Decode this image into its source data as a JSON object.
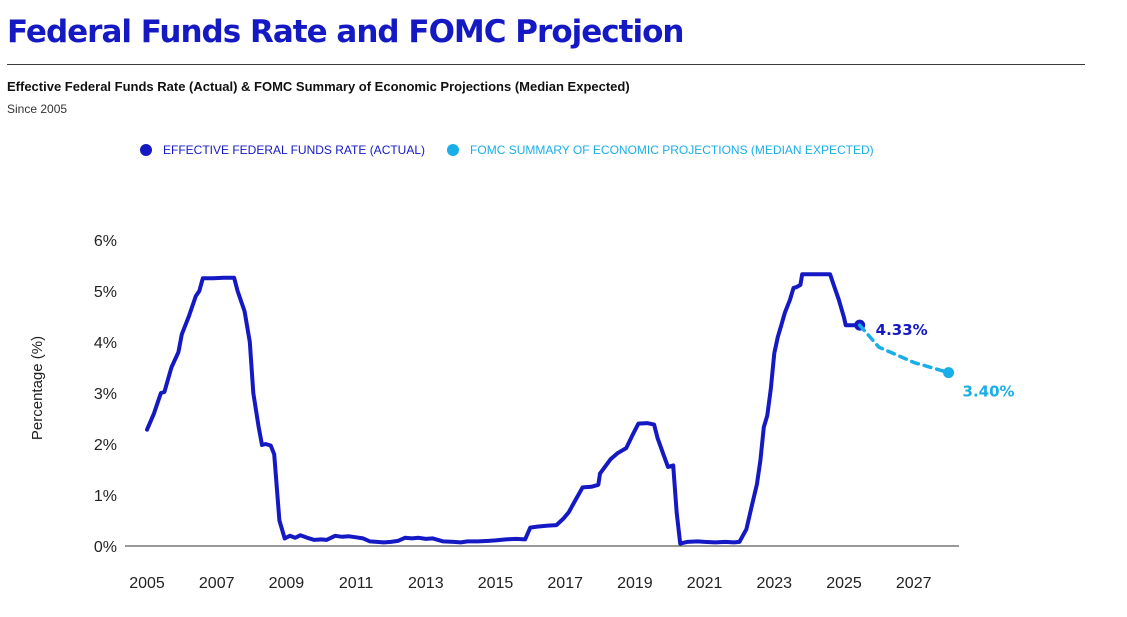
{
  "header": {
    "title": "Federal Funds Rate and FOMC Projection",
    "subtitle": "Effective Federal Funds Rate (Actual) & FOMC Summary of Economic Projections (Median Expected)",
    "since": "Since 2005"
  },
  "legend": {
    "actual": "EFFECTIVE FEDERAL FUNDS RATE (ACTUAL)",
    "projection": "FOMC SUMMARY OF ECONOMIC PROJECTIONS (MEDIAN EXPECTED)"
  },
  "colors": {
    "title": "#1419c4",
    "actual": "#1419c4",
    "projection": "#1aaee8",
    "axis": "#333333"
  },
  "chart_data": {
    "type": "line",
    "title": "Federal Funds Rate and FOMC Projection",
    "xlabel": "",
    "ylabel": "Percentage (%)",
    "xlim": [
      2005,
      2028.3
    ],
    "ylim": [
      0,
      6
    ],
    "xticks": [
      2005,
      2007,
      2009,
      2011,
      2013,
      2015,
      2017,
      2019,
      2021,
      2023,
      2025,
      2027
    ],
    "xtick_labels": [
      "2005",
      "2007",
      "2009",
      "2011",
      "2013",
      "2015",
      "2017",
      "2019",
      "2021",
      "2023",
      "2025",
      "2027"
    ],
    "yticks": [
      0,
      1,
      2,
      3,
      4,
      5,
      6
    ],
    "ytick_labels": [
      "0%",
      "1%",
      "2%",
      "3%",
      "4%",
      "5%",
      "6%"
    ],
    "grid": false,
    "legend_position": "top-center",
    "series": [
      {
        "name": "EFFECTIVE FEDERAL FUNDS RATE (ACTUAL)",
        "style": "solid",
        "color": "#1419c4",
        "end_label": "4.33%",
        "points": [
          [
            2005.0,
            2.28
          ],
          [
            2005.2,
            2.6
          ],
          [
            2005.4,
            3.0
          ],
          [
            2005.5,
            3.02
          ],
          [
            2005.7,
            3.5
          ],
          [
            2005.9,
            3.8
          ],
          [
            2006.0,
            4.15
          ],
          [
            2006.2,
            4.5
          ],
          [
            2006.4,
            4.9
          ],
          [
            2006.5,
            5.0
          ],
          [
            2006.6,
            5.25
          ],
          [
            2006.9,
            5.25
          ],
          [
            2007.2,
            5.26
          ],
          [
            2007.5,
            5.26
          ],
          [
            2007.6,
            5.0
          ],
          [
            2007.8,
            4.6
          ],
          [
            2007.95,
            4.0
          ],
          [
            2008.05,
            3.0
          ],
          [
            2008.2,
            2.35
          ],
          [
            2008.3,
            1.98
          ],
          [
            2008.4,
            2.0
          ],
          [
            2008.55,
            1.97
          ],
          [
            2008.65,
            1.8
          ],
          [
            2008.8,
            0.5
          ],
          [
            2008.95,
            0.15
          ],
          [
            2009.1,
            0.2
          ],
          [
            2009.25,
            0.16
          ],
          [
            2009.4,
            0.21
          ],
          [
            2009.6,
            0.16
          ],
          [
            2009.8,
            0.12
          ],
          [
            2010.0,
            0.13
          ],
          [
            2010.15,
            0.12
          ],
          [
            2010.4,
            0.2
          ],
          [
            2010.6,
            0.18
          ],
          [
            2010.8,
            0.19
          ],
          [
            2011.0,
            0.17
          ],
          [
            2011.2,
            0.15
          ],
          [
            2011.4,
            0.09
          ],
          [
            2011.6,
            0.08
          ],
          [
            2011.8,
            0.07
          ],
          [
            2012.0,
            0.08
          ],
          [
            2012.2,
            0.1
          ],
          [
            2012.4,
            0.16
          ],
          [
            2012.6,
            0.15
          ],
          [
            2012.8,
            0.16
          ],
          [
            2013.0,
            0.14
          ],
          [
            2013.2,
            0.15
          ],
          [
            2013.5,
            0.09
          ],
          [
            2013.8,
            0.08
          ],
          [
            2014.0,
            0.07
          ],
          [
            2014.2,
            0.09
          ],
          [
            2014.5,
            0.09
          ],
          [
            2014.8,
            0.1
          ],
          [
            2015.0,
            0.11
          ],
          [
            2015.3,
            0.13
          ],
          [
            2015.6,
            0.14
          ],
          [
            2015.85,
            0.13
          ],
          [
            2016.0,
            0.36
          ],
          [
            2016.2,
            0.38
          ],
          [
            2016.5,
            0.4
          ],
          [
            2016.75,
            0.41
          ],
          [
            2016.95,
            0.54
          ],
          [
            2017.1,
            0.66
          ],
          [
            2017.3,
            0.91
          ],
          [
            2017.5,
            1.15
          ],
          [
            2017.75,
            1.16
          ],
          [
            2017.95,
            1.2
          ],
          [
            2018.0,
            1.42
          ],
          [
            2018.3,
            1.7
          ],
          [
            2018.5,
            1.82
          ],
          [
            2018.75,
            1.92
          ],
          [
            2018.95,
            2.2
          ],
          [
            2019.1,
            2.4
          ],
          [
            2019.35,
            2.41
          ],
          [
            2019.55,
            2.38
          ],
          [
            2019.65,
            2.12
          ],
          [
            2019.8,
            1.83
          ],
          [
            2019.95,
            1.55
          ],
          [
            2020.1,
            1.58
          ],
          [
            2020.2,
            0.65
          ],
          [
            2020.3,
            0.05
          ],
          [
            2020.5,
            0.08
          ],
          [
            2020.8,
            0.09
          ],
          [
            2021.0,
            0.08
          ],
          [
            2021.3,
            0.07
          ],
          [
            2021.6,
            0.08
          ],
          [
            2021.85,
            0.07
          ],
          [
            2022.0,
            0.08
          ],
          [
            2022.2,
            0.33
          ],
          [
            2022.35,
            0.77
          ],
          [
            2022.5,
            1.21
          ],
          [
            2022.6,
            1.68
          ],
          [
            2022.7,
            2.33
          ],
          [
            2022.8,
            2.56
          ],
          [
            2022.9,
            3.08
          ],
          [
            2023.0,
            3.78
          ],
          [
            2023.1,
            4.1
          ],
          [
            2023.2,
            4.33
          ],
          [
            2023.3,
            4.57
          ],
          [
            2023.45,
            4.83
          ],
          [
            2023.55,
            5.06
          ],
          [
            2023.65,
            5.08
          ],
          [
            2023.75,
            5.12
          ],
          [
            2023.8,
            5.33
          ],
          [
            2024.0,
            5.33
          ],
          [
            2024.3,
            5.33
          ],
          [
            2024.6,
            5.33
          ],
          [
            2024.7,
            5.13
          ],
          [
            2024.85,
            4.83
          ],
          [
            2025.0,
            4.48
          ],
          [
            2025.05,
            4.33
          ],
          [
            2025.35,
            4.33
          ],
          [
            2025.45,
            4.33
          ]
        ]
      },
      {
        "name": "FOMC SUMMARY OF ECONOMIC PROJECTIONS (MEDIAN EXPECTED)",
        "style": "dashed",
        "color": "#1aaee8",
        "end_label": "3.40%",
        "points": [
          [
            2025.45,
            4.33
          ],
          [
            2026.0,
            3.9
          ],
          [
            2027.0,
            3.6
          ],
          [
            2028.0,
            3.4
          ]
        ]
      }
    ]
  }
}
